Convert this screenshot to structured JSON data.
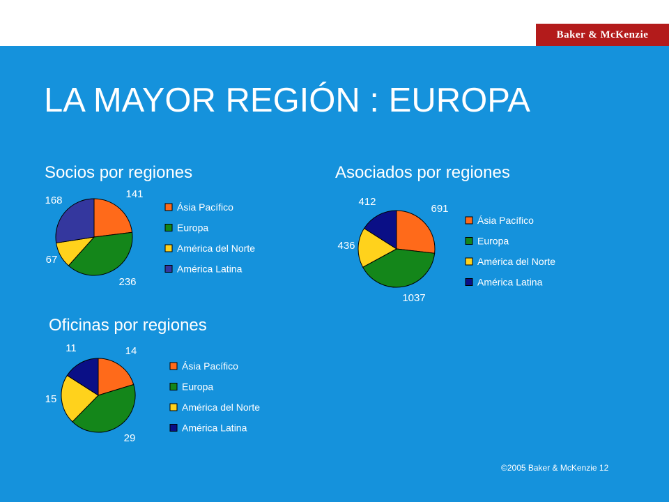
{
  "header": {
    "logo_text": "Baker & McKenzie"
  },
  "slide": {
    "title": "LA MAYOR REGIÓN : EUROPA"
  },
  "colors": {
    "background": "#1592dc",
    "asia_pacifico": "#ff6a1a",
    "europa": "#14861a",
    "america_del_norte": "#ffd21c",
    "america_latina_socios": "#34379e",
    "america_latina": "#0a0f86"
  },
  "chart_data": [
    {
      "type": "pie",
      "title": "Socios por regiones",
      "categories": [
        "Ásia Pacífico",
        "Europa",
        "América del Norte",
        "América Latina"
      ],
      "values": [
        141,
        236,
        67,
        168
      ],
      "colors": [
        "#ff6a1a",
        "#14861a",
        "#ffd21c",
        "#34379e"
      ],
      "legend": "right"
    },
    {
      "type": "pie",
      "title": "Asociados por regiones",
      "categories": [
        "Ásia Pacífico",
        "Europa",
        "América del Norte",
        "América Latina"
      ],
      "values": [
        691,
        1037,
        436,
        412
      ],
      "colors": [
        "#ff6a1a",
        "#14861a",
        "#ffd21c",
        "#0a0f86"
      ],
      "legend": "right"
    },
    {
      "type": "pie",
      "title": "Oficinas por regiones",
      "categories": [
        "Ásia Pacífico",
        "Europa",
        "América del Norte",
        "América Latina"
      ],
      "values": [
        14,
        29,
        15,
        11
      ],
      "colors": [
        "#ff6a1a",
        "#14861a",
        "#ffd21c",
        "#0a0f86"
      ],
      "legend": "right"
    }
  ],
  "footer": {
    "text": "©2005 Baker & McKenzie 12"
  }
}
